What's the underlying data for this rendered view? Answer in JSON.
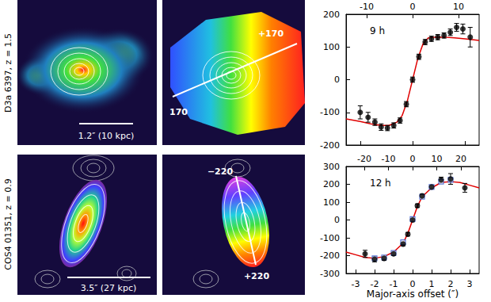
{
  "chart_data": [
    {
      "type": "scatter",
      "annotation": "9 h",
      "xlim": [
        -1.27,
        1.27
      ],
      "xticks": [
        -1,
        0,
        1
      ],
      "x2lim": [
        -14.5,
        14.5
      ],
      "x2ticks": [
        -10,
        0,
        10
      ],
      "ylim": [
        -200,
        200
      ],
      "yticks": [
        -200,
        -100,
        0,
        100,
        200
      ],
      "tick_labels": "y",
      "series": [
        {
          "type": "line",
          "color": "#e00000",
          "line_style": "solid",
          "x": [
            -1.27,
            -1.0,
            -0.8,
            -0.6,
            -0.45,
            -0.3,
            -0.2,
            -0.1,
            0,
            0.1,
            0.2,
            0.3,
            0.45,
            0.6,
            0.8,
            1.0,
            1.27
          ],
          "values": [
            -120,
            -128,
            -135,
            -140,
            -140,
            -130,
            -110,
            -65,
            0,
            65,
            110,
            128,
            130,
            130,
            128,
            125,
            120
          ]
        },
        {
          "type": "scatter",
          "color": "#000000",
          "marker": "circle",
          "x": [
            -1.0,
            -0.85,
            -0.72,
            -0.6,
            -0.48,
            -0.36,
            -0.24,
            -0.12,
            0.0,
            0.12,
            0.24,
            0.36,
            0.48,
            0.6,
            0.72,
            0.84,
            0.96,
            1.1
          ],
          "values": [
            -100,
            -115,
            -130,
            -145,
            -148,
            -140,
            -125,
            -75,
            0,
            70,
            115,
            125,
            130,
            135,
            145,
            160,
            155,
            130
          ],
          "errors": [
            20,
            15,
            10,
            10,
            8,
            8,
            8,
            8,
            8,
            8,
            8,
            8,
            8,
            8,
            10,
            12,
            15,
            30
          ]
        }
      ]
    },
    {
      "type": "scatter",
      "annotation": "12 h",
      "xlabel": "Major-axis offset (″)",
      "xlim": [
        -3.5,
        3.5
      ],
      "xticks": [
        -3,
        -2,
        -1,
        0,
        1,
        2,
        3
      ],
      "x2lim": [
        -27.5,
        27.5
      ],
      "x2ticks": [
        -20,
        -10,
        0,
        10,
        20
      ],
      "ylim": [
        -300,
        300
      ],
      "yticks": [
        -300,
        -200,
        -100,
        0,
        100,
        200,
        300
      ],
      "series": [
        {
          "type": "line",
          "color": "#e00000",
          "line_style": "solid",
          "x": [
            -3.5,
            -3,
            -2.5,
            -2,
            -1.5,
            -1,
            -0.5,
            -0.25,
            0,
            0.25,
            0.5,
            1,
            1.5,
            2,
            2.5,
            3,
            3.5
          ],
          "values": [
            -180,
            -195,
            -210,
            -215,
            -205,
            -180,
            -130,
            -75,
            0,
            75,
            130,
            180,
            210,
            215,
            210,
            195,
            180
          ]
        },
        {
          "type": "scatter",
          "color": "#3355cc",
          "marker": "open_square",
          "x": [
            -2,
            -1.5,
            -1,
            -0.5,
            0,
            0.5,
            1,
            1.5,
            2
          ],
          "values": [
            -215,
            -210,
            -185,
            -125,
            5,
            130,
            185,
            215,
            225
          ]
        },
        {
          "type": "scatter",
          "color": "#000000",
          "marker": "circle",
          "x": [
            -2.5,
            -2,
            -1.5,
            -1,
            -0.5,
            -0.25,
            0,
            0.25,
            0.5,
            1,
            1.5,
            2,
            2.75
          ],
          "values": [
            -190,
            -220,
            -215,
            -190,
            -135,
            -80,
            0,
            80,
            135,
            185,
            225,
            230,
            180
          ],
          "errors": [
            20,
            15,
            12,
            10,
            10,
            10,
            10,
            10,
            10,
            10,
            15,
            30,
            25
          ]
        }
      ]
    }
  ],
  "panels": [
    {
      "label": "D3a 6397, z = 1.5",
      "scale_bar": "1.2″ (10 kpc)",
      "velocity_labels": [
        "170",
        "+170"
      ]
    },
    {
      "label": "COS4 01351, z = 0.9",
      "scale_bar": "3.5″ (27 kpc)",
      "velocity_labels": [
        "−220",
        "+220"
      ]
    }
  ]
}
